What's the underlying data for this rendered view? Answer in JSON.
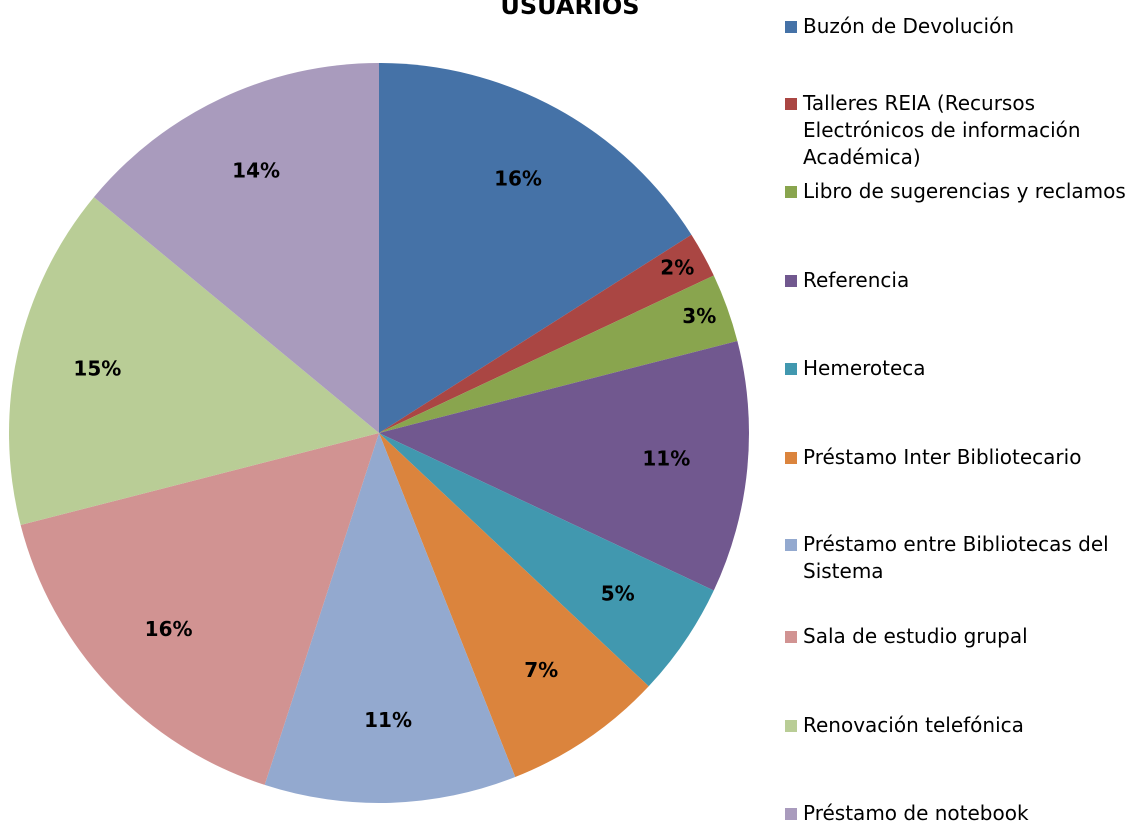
{
  "chart_data": {
    "type": "pie",
    "title": "USUARIOS",
    "categories": [
      "Buzón de Devolución",
      "Talleres REIA (Recursos Electrónicos de información Académica)",
      "Libro de sugerencias y reclamos",
      "Referencia",
      "Hemeroteca",
      "Préstamo Inter Bibliotecario",
      "Préstamo entre Bibliotecas del Sistema",
      "Sala de estudio grupal",
      "Renovación telefónica",
      "Préstamo de notebook"
    ],
    "values": [
      16,
      2,
      3,
      11,
      5,
      7,
      11,
      16,
      15,
      14
    ],
    "value_labels": [
      "16%",
      "2%",
      "3%",
      "11%",
      "5%",
      "7%",
      "11%",
      "16%",
      "15%",
      "14%"
    ],
    "colors": [
      "#4572a7",
      "#aa4643",
      "#89a54e",
      "#71588f",
      "#4198af",
      "#db843d",
      "#93a9cf",
      "#d19392",
      "#b9cd96",
      "#a99bbd"
    ],
    "legend": "right"
  }
}
